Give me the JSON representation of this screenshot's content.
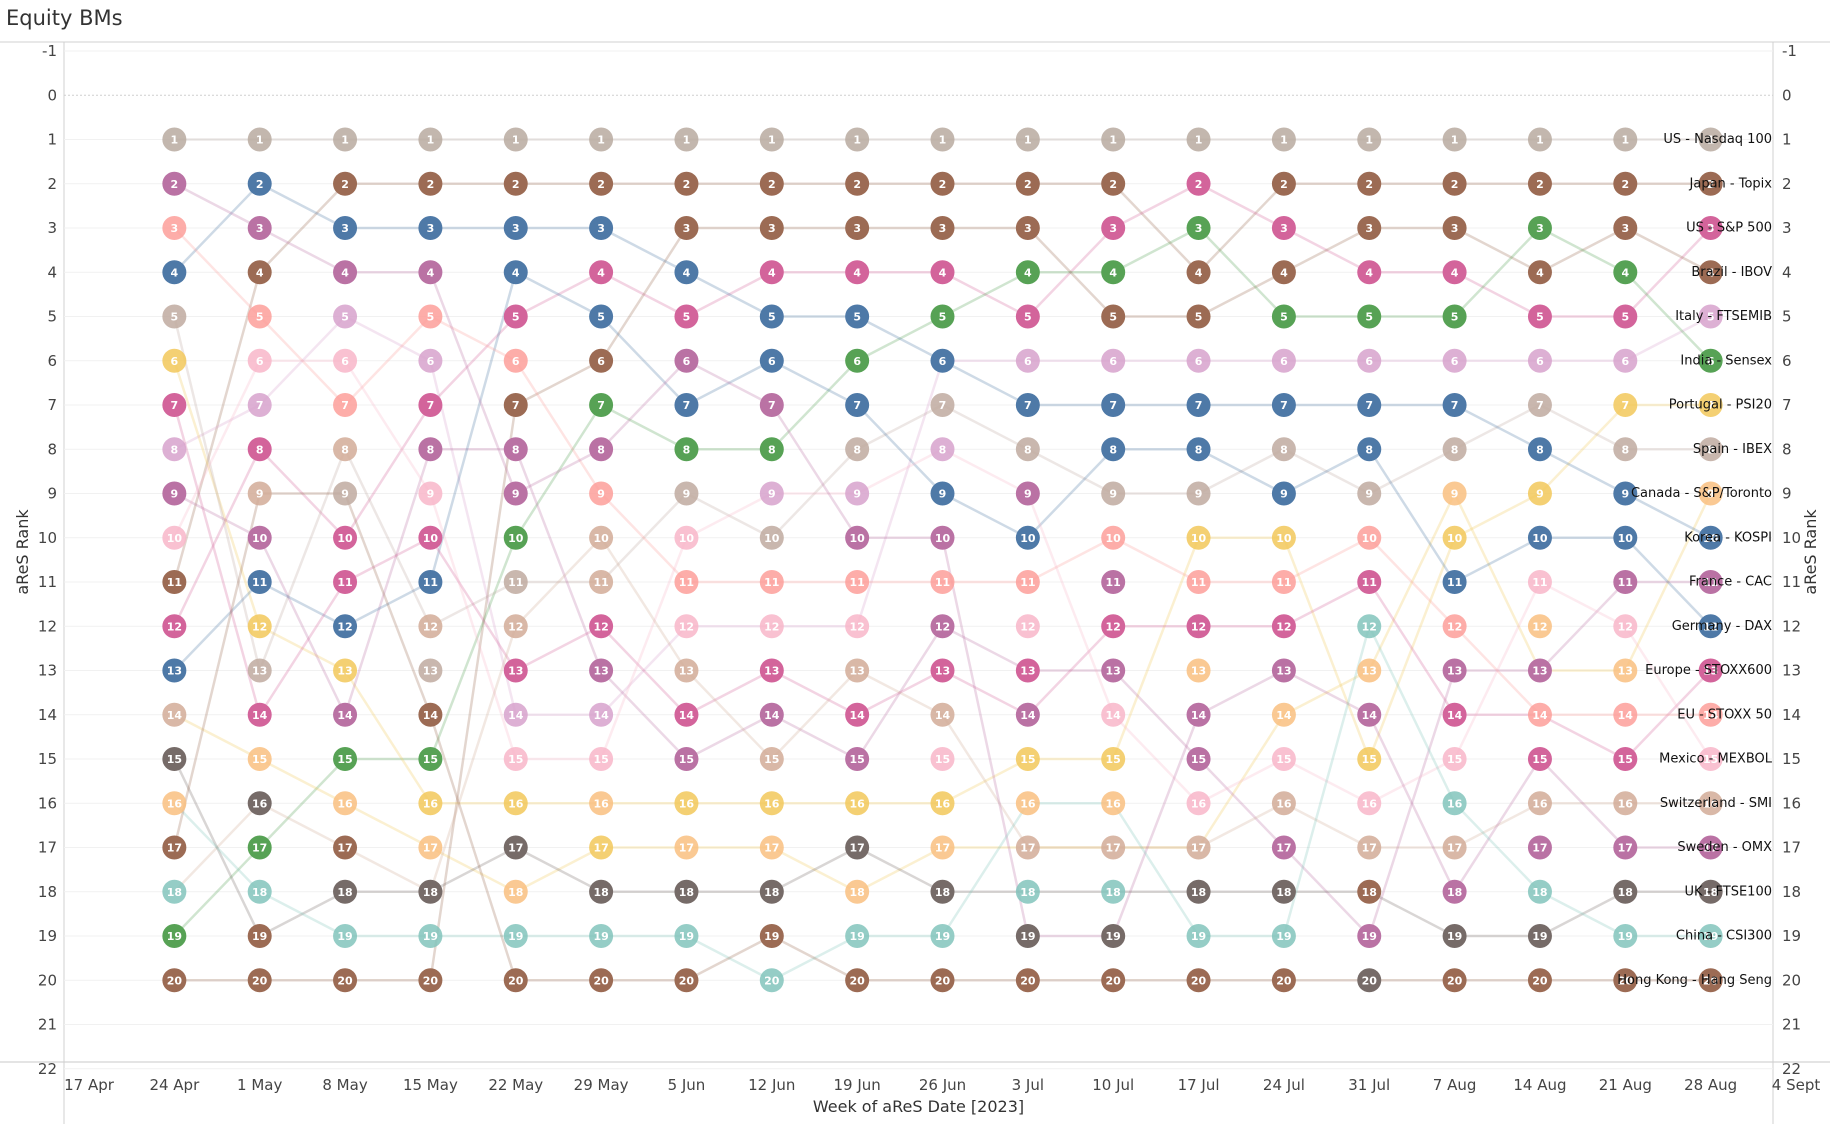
{
  "title": "Equity BMs",
  "chart_data": {
    "type": "line",
    "title": "Equity BMs",
    "xlabel": "Week of aReS Date [2023]",
    "ylabel": "aReS Rank",
    "x_ticks": [
      "17 Apr",
      "24 Apr",
      "1 May",
      "8 May",
      "15 May",
      "22 May",
      "29 May",
      "5 Jun",
      "12 Jun",
      "19 Jun",
      "26 Jun",
      "3 Jul",
      "10 Jul",
      "17 Jul",
      "24 Jul",
      "31 Jul",
      "7 Aug",
      "14 Aug",
      "21 Aug",
      "28 Aug",
      "4 Sept"
    ],
    "y_ticks": [
      -1,
      0,
      1,
      2,
      3,
      4,
      5,
      6,
      7,
      8,
      9,
      10,
      11,
      12,
      13,
      14,
      15,
      16,
      17,
      18,
      19,
      20,
      21,
      22
    ],
    "ylim": [
      -1,
      22
    ],
    "y_reversed": true,
    "grid": true,
    "x": [
      "24 Apr",
      "1 May",
      "8 May",
      "15 May",
      "22 May",
      "29 May",
      "5 Jun",
      "12 Jun",
      "19 Jun",
      "26 Jun",
      "3 Jul",
      "10 Jul",
      "17 Jul",
      "24 Jul",
      "31 Jul",
      "7 Aug",
      "14 Aug",
      "21 Aug",
      "28 Aug"
    ],
    "series": [
      {
        "name": "US - Nasdaq 100",
        "color": "#b8aaa0",
        "values": [
          1,
          1,
          1,
          1,
          1,
          1,
          1,
          1,
          1,
          1,
          1,
          1,
          1,
          1,
          1,
          1,
          1,
          1,
          1
        ]
      },
      {
        "name": "Japan - Topix",
        "color": "#9c6b54",
        "values": [
          11,
          4,
          2,
          2,
          2,
          2,
          2,
          2,
          2,
          2,
          2,
          2,
          4,
          2,
          2,
          2,
          2,
          2,
          2
        ]
      },
      {
        "name": "US - S&P 500",
        "color": "#d3649b",
        "values": [
          12,
          8,
          10,
          7,
          5,
          4,
          5,
          4,
          4,
          4,
          5,
          3,
          2,
          3,
          4,
          4,
          5,
          5,
          3
        ]
      },
      {
        "name": "Brazil - IBOV",
        "color": "#9c6b54",
        "values": [
          20,
          20,
          20,
          20,
          7,
          6,
          3,
          3,
          3,
          3,
          3,
          5,
          5,
          4,
          3,
          3,
          4,
          3,
          4
        ]
      },
      {
        "name": "Italy - FTSEMIB",
        "color": "#d7a2cd",
        "values": [
          8,
          7,
          5,
          6,
          14,
          14,
          12,
          12,
          12,
          6,
          6,
          6,
          6,
          6,
          6,
          6,
          6,
          6,
          5
        ]
      },
      {
        "name": "India - Sensex",
        "color": "#57a255",
        "values": [
          19,
          17,
          15,
          15,
          10,
          7,
          8,
          8,
          6,
          5,
          4,
          4,
          3,
          5,
          5,
          5,
          3,
          4,
          6
        ]
      },
      {
        "name": "Portugal - PSI20",
        "color": "#f2c85b",
        "values": [
          6,
          12,
          13,
          16,
          16,
          16,
          16,
          16,
          16,
          16,
          15,
          15,
          10,
          10,
          15,
          10,
          9,
          7,
          7
        ]
      },
      {
        "name": "Spain - IBEX",
        "color": "#bfaaa0",
        "values": [
          5,
          13,
          8,
          12,
          11,
          11,
          9,
          10,
          8,
          7,
          8,
          9,
          9,
          8,
          9,
          8,
          7,
          8,
          8
        ]
      },
      {
        "name": "Canada - S&P/Toronto",
        "color": "#f2c85b",
        "values": [
          14,
          15,
          16,
          17,
          18,
          17,
          17,
          17,
          18,
          17,
          17,
          17,
          17,
          14,
          13,
          9,
          13,
          13,
          9
        ]
      },
      {
        "name": "Korea - KOSPI",
        "color": "#4e79a7",
        "values": [
          4,
          2,
          3,
          3,
          3,
          3,
          4,
          5,
          5,
          6,
          7,
          7,
          7,
          7,
          7,
          7,
          8,
          9,
          10
        ]
      },
      {
        "name": "France - CAC",
        "color": "#ba72a4",
        "values": [
          9,
          10,
          14,
          8,
          8,
          13,
          15,
          14,
          15,
          12,
          13,
          13,
          15,
          17,
          19,
          13,
          13,
          11,
          11
        ]
      },
      {
        "name": "Germany - DAX",
        "color": "#4e79a7",
        "values": [
          13,
          11,
          12,
          11,
          4,
          5,
          7,
          6,
          7,
          9,
          10,
          8,
          8,
          9,
          8,
          11,
          10,
          10,
          12
        ]
      },
      {
        "name": "Europe - STOXX600",
        "color": "#d3649b",
        "values": [
          7,
          14,
          11,
          10,
          13,
          12,
          14,
          13,
          14,
          13,
          14,
          12,
          12,
          12,
          11,
          14,
          14,
          15,
          13
        ]
      },
      {
        "name": "EU - STOXX 50",
        "color": "#fd9f9a",
        "values": [
          3,
          5,
          7,
          5,
          6,
          9,
          11,
          11,
          11,
          11,
          11,
          10,
          11,
          11,
          10,
          12,
          14,
          14,
          14
        ]
      },
      {
        "name": "Mexico - MEXBOL",
        "color": "#f8b6c9",
        "values": [
          10,
          6,
          6,
          9,
          15,
          15,
          10,
          9,
          9,
          8,
          9,
          14,
          16,
          15,
          16,
          15,
          11,
          12,
          15
        ]
      },
      {
        "name": "Switzerland - SMI",
        "color": "#d2ab98",
        "values": [
          18,
          16,
          17,
          18,
          12,
          10,
          13,
          15,
          13,
          14,
          17,
          17,
          17,
          16,
          17,
          17,
          16,
          16,
          16
        ]
      },
      {
        "name": "Sweden - OMX",
        "color": "#ba72a4",
        "values": [
          2,
          3,
          4,
          4,
          9,
          8,
          6,
          7,
          10,
          10,
          19,
          19,
          14,
          13,
          14,
          18,
          15,
          17,
          17
        ]
      },
      {
        "name": "UK - FTSE100",
        "color": "#766b68",
        "values": [
          15,
          19,
          18,
          18,
          17,
          18,
          18,
          18,
          17,
          18,
          18,
          18,
          18,
          18,
          18,
          19,
          19,
          18,
          18
        ]
      },
      {
        "name": "China - CSI300",
        "color": "#82c4bc",
        "values": [
          16,
          18,
          19,
          19,
          19,
          19,
          19,
          20,
          19,
          19,
          16,
          16,
          19,
          19,
          12,
          16,
          18,
          19,
          19
        ]
      },
      {
        "name": "Hong Kong - Hang Seng",
        "color": "#9c6b54",
        "values": [
          17,
          9,
          9,
          14,
          20,
          20,
          20,
          19,
          20,
          20,
          20,
          20,
          20,
          20,
          20,
          20,
          20,
          20,
          20
        ]
      }
    ],
    "point_colors": {
      "24 Apr": {
        "1": "#b8aaa0",
        "2": "#ba72a4",
        "3": "#fd9f9a",
        "4": "#4e79a7",
        "5": "#bfaaa0",
        "6": "#f2c85b",
        "7": "#d3649b",
        "8": "#d7a2cd",
        "9": "#ba72a4",
        "10": "#f8b6c9",
        "11": "#9c6b54",
        "12": "#d3649b",
        "13": "#4e79a7",
        "14": "#d2ab98",
        "15": "#766b68",
        "16": "#f9c080",
        "17": "#9c6b54",
        "18": "#82c4bc",
        "19": "#57a255",
        "20": "#9c6b54"
      },
      "1 May": {
        "1": "#b8aaa0",
        "2": "#4e79a7",
        "3": "#ba72a4",
        "4": "#9c6b54",
        "5": "#fd9f9a",
        "6": "#f8b6c9",
        "7": "#d7a2cd",
        "8": "#d3649b",
        "9": "#d2ab98",
        "10": "#ba72a4",
        "11": "#4e79a7",
        "12": "#f2c85b",
        "13": "#bfaaa0",
        "14": "#d3649b",
        "15": "#f9c080",
        "16": "#766b68",
        "17": "#57a255",
        "18": "#82c4bc",
        "19": "#9c6b54",
        "20": "#9c6b54"
      },
      "8 May": {
        "1": "#b8aaa0",
        "2": "#9c6b54",
        "3": "#4e79a7",
        "4": "#ba72a4",
        "5": "#d7a2cd",
        "6": "#f8b6c9",
        "7": "#fd9f9a",
        "8": "#d2ab98",
        "9": "#bfaaa0",
        "10": "#d3649b",
        "11": "#d3649b",
        "12": "#4e79a7",
        "13": "#f2c85b",
        "14": "#ba72a4",
        "15": "#57a255",
        "16": "#f9c080",
        "17": "#9c6b54",
        "18": "#766b68",
        "19": "#82c4bc",
        "20": "#9c6b54"
      },
      "15 May": {
        "1": "#b8aaa0",
        "2": "#9c6b54",
        "3": "#4e79a7",
        "4": "#ba72a4",
        "5": "#fd9f9a",
        "6": "#d7a2cd",
        "7": "#d3649b",
        "8": "#ba72a4",
        "9": "#f8b6c9",
        "10": "#d3649b",
        "11": "#4e79a7",
        "12": "#d2ab98",
        "13": "#bfaaa0",
        "14": "#9c6b54",
        "15": "#57a255",
        "16": "#f2c85b",
        "17": "#f9c080",
        "18": "#766b68",
        "19": "#82c4bc",
        "20": "#9c6b54"
      },
      "22 May": {
        "1": "#b8aaa0",
        "2": "#9c6b54",
        "3": "#4e79a7",
        "4": "#4e79a7",
        "5": "#d3649b",
        "6": "#fd9f9a",
        "7": "#9c6b54",
        "8": "#ba72a4",
        "9": "#ba72a4",
        "10": "#57a255",
        "11": "#bfaaa0",
        "12": "#d2ab98",
        "13": "#d3649b",
        "14": "#d7a2cd",
        "15": "#f8b6c9",
        "16": "#f2c85b",
        "17": "#766b68",
        "18": "#f9c080",
        "19": "#82c4bc",
        "20": "#9c6b54"
      },
      "29 May": {
        "1": "#b8aaa0",
        "2": "#9c6b54",
        "3": "#4e79a7",
        "4": "#d3649b",
        "5": "#4e79a7",
        "6": "#9c6b54",
        "7": "#57a255",
        "8": "#ba72a4",
        "9": "#fd9f9a",
        "10": "#d2ab98",
        "11": "#d2ab98",
        "12": "#d3649b",
        "13": "#ba72a4",
        "14": "#d7a2cd",
        "15": "#f8b6c9",
        "16": "#f9c080",
        "17": "#f2c85b",
        "18": "#766b68",
        "19": "#82c4bc",
        "20": "#9c6b54"
      },
      "5 Jun": {
        "1": "#b8aaa0",
        "2": "#9c6b54",
        "3": "#9c6b54",
        "4": "#4e79a7",
        "5": "#d3649b",
        "6": "#ba72a4",
        "7": "#4e79a7",
        "8": "#57a255",
        "9": "#bfaaa0",
        "10": "#f8b6c9",
        "11": "#fd9f9a",
        "12": "#f8b6c9",
        "13": "#d2ab98",
        "14": "#d3649b",
        "15": "#ba72a4",
        "16": "#f2c85b",
        "17": "#f9c080",
        "18": "#766b68",
        "19": "#82c4bc",
        "20": "#9c6b54"
      },
      "12 Jun": {
        "1": "#b8aaa0",
        "2": "#9c6b54",
        "3": "#9c6b54",
        "4": "#d3649b",
        "5": "#4e79a7",
        "6": "#4e79a7",
        "7": "#ba72a4",
        "8": "#57a255",
        "9": "#d7a2cd",
        "10": "#bfaaa0",
        "11": "#fd9f9a",
        "12": "#f8b6c9",
        "13": "#d3649b",
        "14": "#ba72a4",
        "15": "#d2ab98",
        "16": "#f2c85b",
        "17": "#f9c080",
        "18": "#766b68",
        "19": "#9c6b54",
        "20": "#82c4bc"
      },
      "19 Jun": {
        "1": "#b8aaa0",
        "2": "#9c6b54",
        "3": "#9c6b54",
        "4": "#d3649b",
        "5": "#4e79a7",
        "6": "#57a255",
        "7": "#4e79a7",
        "8": "#bfaaa0",
        "9": "#d7a2cd",
        "10": "#ba72a4",
        "11": "#fd9f9a",
        "12": "#f8b6c9",
        "13": "#d2ab98",
        "14": "#d3649b",
        "15": "#ba72a4",
        "16": "#f2c85b",
        "17": "#766b68",
        "18": "#f9c080",
        "19": "#82c4bc",
        "20": "#9c6b54"
      },
      "26 Jun": {
        "1": "#b8aaa0",
        "2": "#9c6b54",
        "3": "#9c6b54",
        "4": "#d3649b",
        "5": "#57a255",
        "6": "#4e79a7",
        "7": "#bfaaa0",
        "8": "#d7a2cd",
        "9": "#4e79a7",
        "10": "#ba72a4",
        "11": "#fd9f9a",
        "12": "#ba72a4",
        "13": "#d3649b",
        "14": "#d2ab98",
        "15": "#f8b6c9",
        "16": "#f2c85b",
        "17": "#f9c080",
        "18": "#766b68",
        "19": "#82c4bc",
        "20": "#9c6b54"
      },
      "3 Jul": {
        "1": "#b8aaa0",
        "2": "#9c6b54",
        "3": "#9c6b54",
        "4": "#57a255",
        "5": "#d3649b",
        "6": "#d7a2cd",
        "7": "#4e79a7",
        "8": "#bfaaa0",
        "9": "#ba72a4",
        "10": "#4e79a7",
        "11": "#fd9f9a",
        "12": "#f8b6c9",
        "13": "#d3649b",
        "14": "#ba72a4",
        "15": "#f2c85b",
        "16": "#f9c080",
        "17": "#d2ab98",
        "18": "#82c4bc",
        "19": "#766b68",
        "20": "#9c6b54"
      },
      "10 Jul": {
        "1": "#b8aaa0",
        "2": "#9c6b54",
        "3": "#d3649b",
        "4": "#57a255",
        "5": "#9c6b54",
        "6": "#d7a2cd",
        "7": "#4e79a7",
        "8": "#4e79a7",
        "9": "#bfaaa0",
        "10": "#fd9f9a",
        "11": "#ba72a4",
        "12": "#d3649b",
        "13": "#ba72a4",
        "14": "#f8b6c9",
        "15": "#f2c85b",
        "16": "#f9c080",
        "17": "#d2ab98",
        "18": "#82c4bc",
        "19": "#766b68",
        "20": "#9c6b54"
      },
      "17 Jul": {
        "1": "#b8aaa0",
        "2": "#d3649b",
        "3": "#57a255",
        "4": "#9c6b54",
        "5": "#9c6b54",
        "6": "#d7a2cd",
        "7": "#4e79a7",
        "8": "#4e79a7",
        "9": "#bfaaa0",
        "10": "#f2c85b",
        "11": "#fd9f9a",
        "12": "#d3649b",
        "13": "#f9c080",
        "14": "#ba72a4",
        "15": "#ba72a4",
        "16": "#f8b6c9",
        "17": "#d2ab98",
        "18": "#766b68",
        "19": "#82c4bc",
        "20": "#9c6b54"
      },
      "24 Jul": {
        "1": "#b8aaa0",
        "2": "#9c6b54",
        "3": "#d3649b",
        "4": "#9c6b54",
        "5": "#57a255",
        "6": "#d7a2cd",
        "7": "#4e79a7",
        "8": "#bfaaa0",
        "9": "#4e79a7",
        "10": "#f2c85b",
        "11": "#fd9f9a",
        "12": "#d3649b",
        "13": "#ba72a4",
        "14": "#f9c080",
        "15": "#f8b6c9",
        "16": "#d2ab98",
        "17": "#ba72a4",
        "18": "#766b68",
        "19": "#82c4bc",
        "20": "#9c6b54"
      },
      "31 Jul": {
        "1": "#b8aaa0",
        "2": "#9c6b54",
        "3": "#9c6b54",
        "4": "#d3649b",
        "5": "#57a255",
        "6": "#d7a2cd",
        "7": "#4e79a7",
        "8": "#4e79a7",
        "9": "#bfaaa0",
        "10": "#fd9f9a",
        "11": "#d3649b",
        "12": "#82c4bc",
        "13": "#f9c080",
        "14": "#ba72a4",
        "15": "#f2c85b",
        "16": "#f8b6c9",
        "17": "#d2ab98",
        "18": "#9c6b54",
        "19": "#ba72a4",
        "20": "#766b68"
      },
      "7 Aug": {
        "1": "#b8aaa0",
        "2": "#9c6b54",
        "3": "#9c6b54",
        "4": "#d3649b",
        "5": "#57a255",
        "6": "#d7a2cd",
        "7": "#4e79a7",
        "8": "#bfaaa0",
        "9": "#f9c080",
        "10": "#f2c85b",
        "11": "#4e79a7",
        "12": "#fd9f9a",
        "13": "#ba72a4",
        "14": "#d3649b",
        "15": "#f8b6c9",
        "16": "#82c4bc",
        "17": "#d2ab98",
        "18": "#ba72a4",
        "19": "#766b68",
        "20": "#9c6b54"
      },
      "14 Aug": {
        "1": "#b8aaa0",
        "2": "#9c6b54",
        "3": "#57a255",
        "4": "#9c6b54",
        "5": "#d3649b",
        "6": "#d7a2cd",
        "7": "#bfaaa0",
        "8": "#4e79a7",
        "9": "#f2c85b",
        "10": "#4e79a7",
        "11": "#f8b6c9",
        "12": "#f9c080",
        "13": "#ba72a4",
        "14": "#fd9f9a",
        "15": "#d3649b",
        "16": "#d2ab98",
        "17": "#ba72a4",
        "18": "#82c4bc",
        "19": "#766b68",
        "20": "#9c6b54"
      },
      "21 Aug": {
        "1": "#b8aaa0",
        "2": "#9c6b54",
        "3": "#9c6b54",
        "4": "#57a255",
        "5": "#d3649b",
        "6": "#d7a2cd",
        "7": "#f2c85b",
        "8": "#bfaaa0",
        "9": "#4e79a7",
        "10": "#4e79a7",
        "11": "#ba72a4",
        "12": "#f8b6c9",
        "13": "#f9c080",
        "14": "#fd9f9a",
        "15": "#d3649b",
        "16": "#d2ab98",
        "17": "#ba72a4",
        "18": "#766b68",
        "19": "#82c4bc",
        "20": "#9c6b54"
      },
      "28 Aug": {
        "1": "#b8aaa0",
        "2": "#9c6b54",
        "3": "#d3649b",
        "4": "#9c6b54",
        "5": "#d7a2cd",
        "6": "#57a255",
        "7": "#f2c85b",
        "8": "#bfaaa0",
        "9": "#f9c080",
        "10": "#4e79a7",
        "11": "#ba72a4",
        "12": "#4e79a7",
        "13": "#d3649b",
        "14": "#fd9f9a",
        "15": "#f8b6c9",
        "16": "#d2ab98",
        "17": "#ba72a4",
        "18": "#766b68",
        "19": "#82c4bc",
        "20": "#9c6b54"
      }
    },
    "end_labels": [
      "US - Nasdaq 100",
      "Japan - Topix",
      "US - S&P 500",
      "Brazil - IBOV",
      "Italy - FTSEMIB",
      "India - Sensex",
      "Portugal - PSI20",
      "Spain - IBEX",
      "Canada - S&P/Toronto",
      "Korea - KOSPI",
      "France - CAC",
      "Germany - DAX",
      "Europe - STOXX600",
      "EU - STOXX 50",
      "Mexico - MEXBOL",
      "Switzerland - SMI",
      "Sweden - OMX",
      "UK - FTSE100",
      "China - CSI300",
      "Hong Kong - Hang Seng"
    ]
  }
}
